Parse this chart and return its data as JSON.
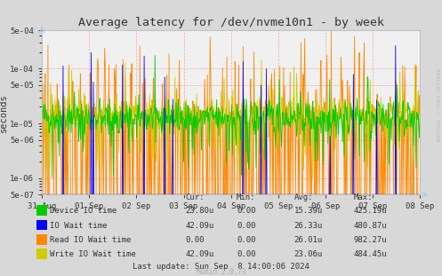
{
  "title": "Average latency for /dev/nvme10n1 - by week",
  "ylabel": "seconds",
  "background_color": "#d8d8d8",
  "plot_bg_color": "#f0f0f0",
  "grid_color": "#ff8080",
  "ylim_log": [
    5e-07,
    0.0005
  ],
  "yticks": [
    5e-07,
    1e-06,
    5e-06,
    1e-05,
    5e-05,
    0.0001,
    0.0005
  ],
  "ytick_labels": [
    "5e-07",
    "1e-06",
    "5e-06",
    "1e-05",
    "5e-05",
    "1e-04",
    "5e-04"
  ],
  "xtick_labels": [
    "31 Aug",
    "01 Sep",
    "02 Sep",
    "03 Sep",
    "04 Sep",
    "05 Sep",
    "06 Sep",
    "07 Sep",
    "08 Sep"
  ],
  "legend_items": [
    {
      "label": "Device IO time",
      "color": "#00cc00"
    },
    {
      "label": "IO Wait time",
      "color": "#0000ff"
    },
    {
      "label": "Read IO Wait time",
      "color": "#ff8800"
    },
    {
      "label": "Write IO Wait time",
      "color": "#cccc00"
    }
  ],
  "legend_stats": {
    "headers": [
      "Cur:",
      "Min:",
      "Avg:",
      "Max:"
    ],
    "rows": [
      [
        "23.80u",
        "0.00",
        "15.39u",
        "425.19u"
      ],
      [
        "42.09u",
        "0.00",
        "26.33u",
        "480.87u"
      ],
      [
        "0.00",
        "0.00",
        "26.01u",
        "982.27u"
      ],
      [
        "42.09u",
        "0.00",
        "23.06u",
        "484.45u"
      ]
    ]
  },
  "footer": "Last update: Sun Sep  8 14:00:06 2024",
  "munin_version": "Munin 2.0.73",
  "rrdtool_label": "RRDTOOL / TOBI OETIKER",
  "num_points": 700,
  "seed": 42
}
